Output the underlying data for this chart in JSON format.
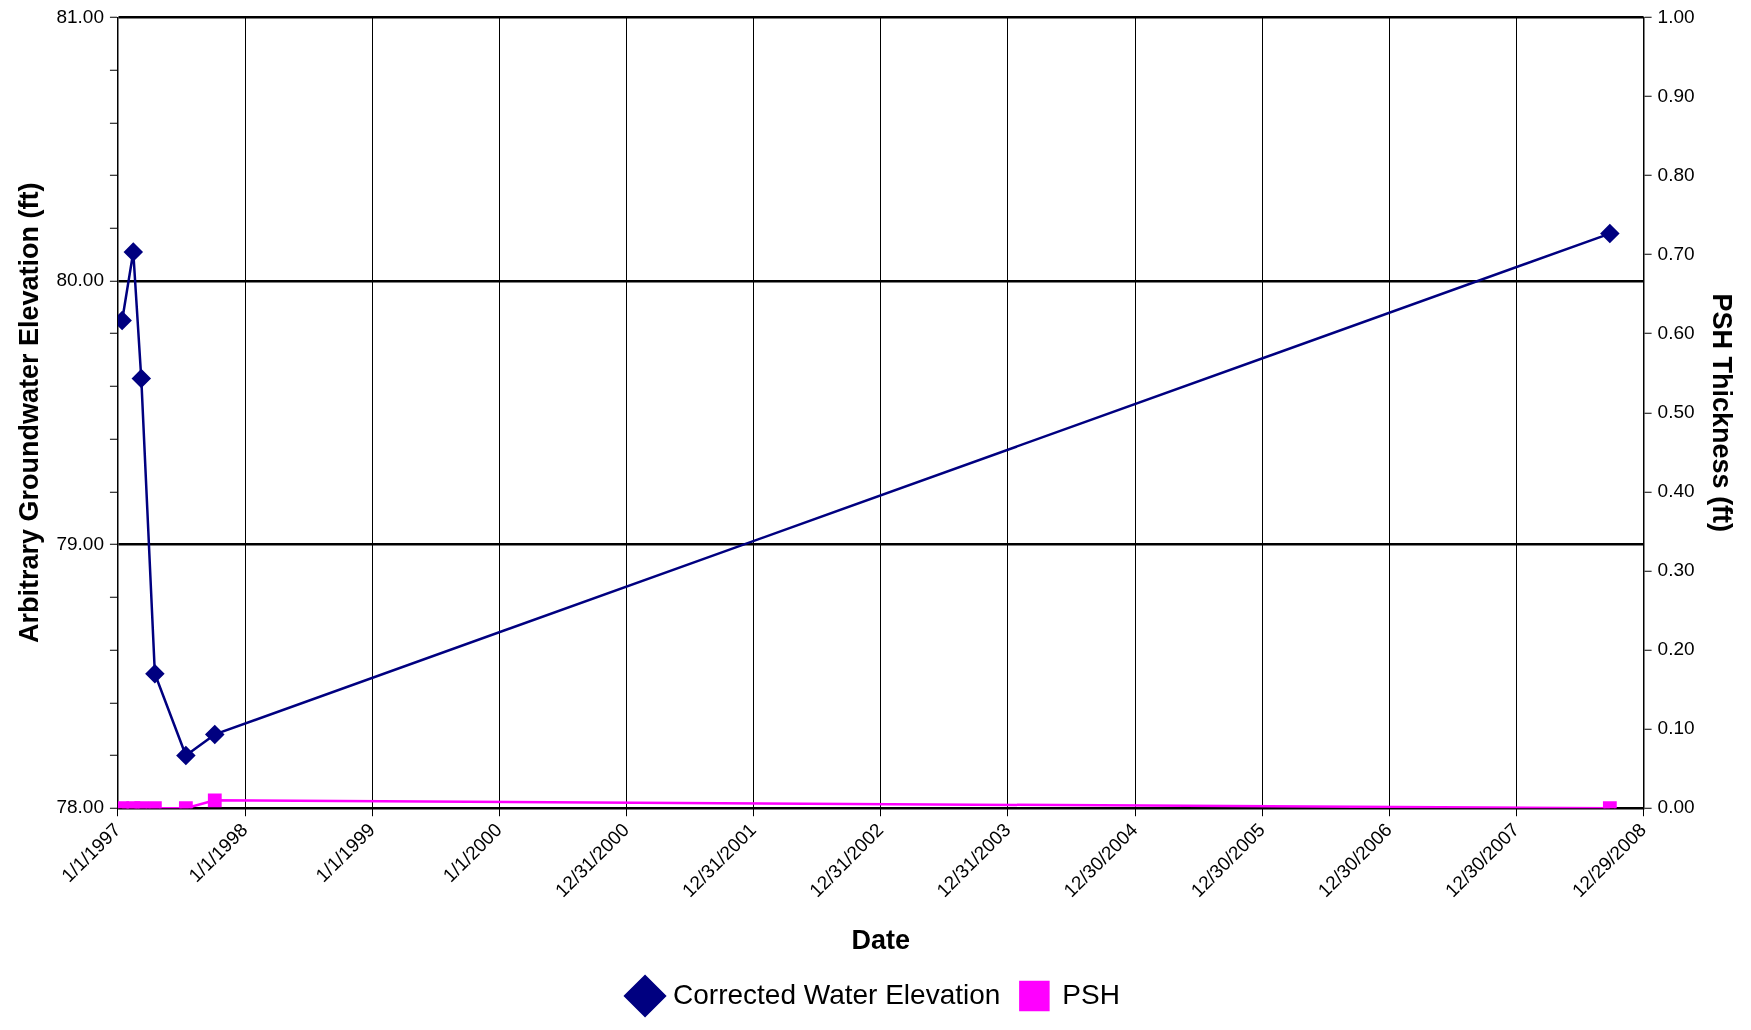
{
  "chart_data": {
    "type": "line",
    "xlabel": "Date",
    "ylabel": "Arbitrary Groundwater Elevation (ft)",
    "y2label": "PSH Thickness (ft)",
    "xlim": [
      "1997-01-01",
      "2008-12-29"
    ],
    "xticks": [
      {
        "value": "1997-01-01",
        "label": "1/1/1997"
      },
      {
        "value": "1998-01-01",
        "label": "1/1/1998"
      },
      {
        "value": "1999-01-01",
        "label": "1/1/1999"
      },
      {
        "value": "2000-01-01",
        "label": "1/1/2000"
      },
      {
        "value": "2000-12-31",
        "label": "12/31/2000"
      },
      {
        "value": "2001-12-31",
        "label": "12/31/2001"
      },
      {
        "value": "2002-12-31",
        "label": "12/31/2002"
      },
      {
        "value": "2003-12-31",
        "label": "12/31/2003"
      },
      {
        "value": "2004-12-30",
        "label": "12/30/2004"
      },
      {
        "value": "2005-12-30",
        "label": "12/30/2005"
      },
      {
        "value": "2006-12-30",
        "label": "12/30/2006"
      },
      {
        "value": "2007-12-30",
        "label": "12/30/2007"
      },
      {
        "value": "2008-12-29",
        "label": "12/29/2008"
      }
    ],
    "ylim": [
      78,
      81
    ],
    "yticks": [
      {
        "value": 78,
        "label": "78.00"
      },
      {
        "value": 78.2,
        "label": null
      },
      {
        "value": 78.4,
        "label": null
      },
      {
        "value": 78.6,
        "label": null
      },
      {
        "value": 78.8,
        "label": null
      },
      {
        "value": 79,
        "label": "79.00"
      },
      {
        "value": 79.2,
        "label": null
      },
      {
        "value": 79.4,
        "label": null
      },
      {
        "value": 79.6,
        "label": null
      },
      {
        "value": 79.8,
        "label": null
      },
      {
        "value": 80,
        "label": "80.00"
      },
      {
        "value": 80.2,
        "label": null
      },
      {
        "value": 80.4,
        "label": null
      },
      {
        "value": 80.6,
        "label": null
      },
      {
        "value": 80.8,
        "label": null
      },
      {
        "value": 81,
        "label": "81.00"
      }
    ],
    "y2lim": [
      0,
      1
    ],
    "y2ticks": [
      {
        "value": 0,
        "label": "0.00"
      },
      {
        "value": 0.1,
        "label": "0.10"
      },
      {
        "value": 0.2,
        "label": "0.20"
      },
      {
        "value": 0.3,
        "label": "0.30"
      },
      {
        "value": 0.4,
        "label": "0.40"
      },
      {
        "value": 0.5,
        "label": "0.50"
      },
      {
        "value": 0.6,
        "label": "0.60"
      },
      {
        "value": 0.7,
        "label": "0.70"
      },
      {
        "value": 0.8,
        "label": "0.80"
      },
      {
        "value": 0.9,
        "label": "0.90"
      },
      {
        "value": 1,
        "label": "1.00"
      }
    ],
    "grid": true,
    "legend": "bottom",
    "line_style": "solid",
    "series": [
      {
        "name": "Corrected Water Elevation",
        "color": "#000080",
        "marker": "diamond",
        "x": [
          "1997-01-13",
          "1997-02-14",
          "1997-03-09",
          "1997-04-17",
          "1997-07-15",
          "1997-10-06",
          "2008-09-23"
        ],
        "values": [
          79.85,
          80.11,
          79.63,
          78.51,
          78.2,
          78.28,
          80.18
        ]
      },
      {
        "name": "PSH",
        "color": "#ff00ff",
        "marker": "square",
        "axis": "y2",
        "x": [
          "1997-01-13",
          "1997-02-14",
          "1997-03-09",
          "1997-04-17",
          "1997-07-15",
          "1997-10-06",
          "2008-09-23"
        ],
        "values": [
          0,
          0,
          0,
          0,
          0,
          0.01,
          0
        ]
      }
    ]
  }
}
